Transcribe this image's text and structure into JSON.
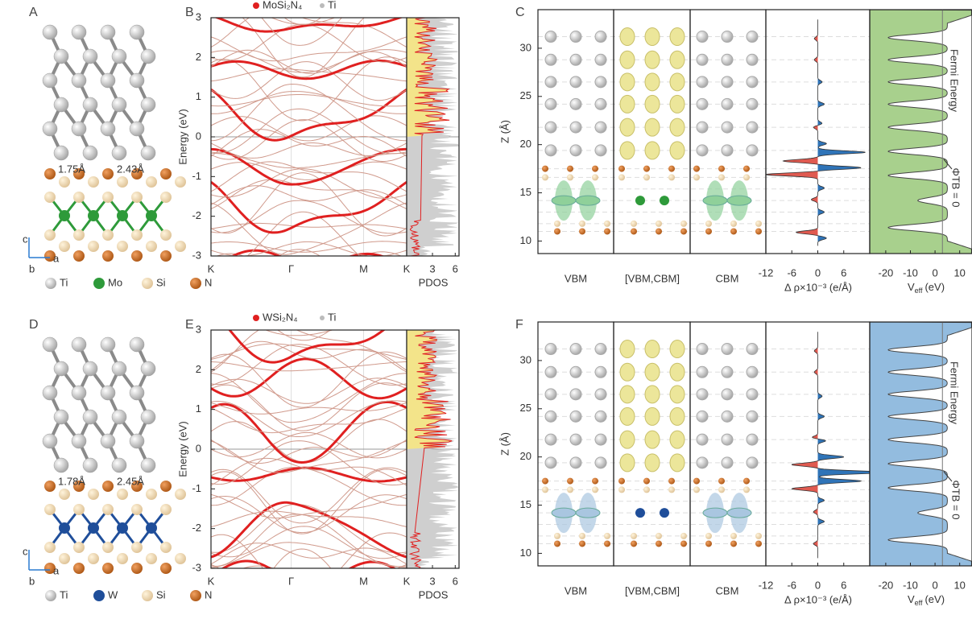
{
  "rows": [
    {
      "structure": {
        "label": "A",
        "legend": [
          "Ti",
          "Mo",
          "Si",
          "N"
        ],
        "bond_lengths": [
          "1.75Å",
          "2.43Å"
        ],
        "axis_labels": [
          "c",
          "a",
          "b"
        ],
        "metal_color": "#2e9a3a"
      },
      "bands": {
        "label": "B",
        "legend": [
          "MoSi₂N₄",
          "Ti"
        ],
        "y_label": "Energy (eV)",
        "ylim": [
          -3,
          3
        ],
        "yticks": [
          -3,
          -2,
          -1,
          0,
          1,
          2,
          3
        ],
        "kpoints": [
          "K",
          "Γ",
          "M",
          "K"
        ],
        "pdos_label": "PDOS",
        "pdos_xlim": [
          -0.4,
          6.5
        ],
        "pdos_xticks": [
          3,
          6
        ]
      },
      "profile": {
        "label": "C",
        "y_label": "Z (Å)",
        "ylim": [
          8.7,
          34
        ],
        "yticks": [
          10,
          15,
          20,
          25,
          30
        ],
        "columns": [
          "VBM",
          "[VBM,CBM]",
          "CBM"
        ],
        "drho_label": "Δ ρ×10⁻³ (e/Å)",
        "drho_xlim": [
          -12,
          12
        ],
        "drho_xticks": [
          -12,
          -6,
          0,
          6
        ],
        "veff_label": {
          "symbol": "V",
          "sub": "eff",
          "unit": "(eV)"
        },
        "veff_xlim": [
          -26.5,
          15
        ],
        "veff_xticks": [
          -20,
          -10,
          0,
          10
        ],
        "fermi_label": "Fermi Energy",
        "phi_label": "ΦTB = 0",
        "fill_color": "#a8d08d",
        "orbital_color": "#8fd09a"
      }
    },
    {
      "structure": {
        "label": "D",
        "legend": [
          "Ti",
          "W",
          "Si",
          "N"
        ],
        "bond_lengths": [
          "1.78Å",
          "2.45Å"
        ],
        "axis_labels": [
          "c",
          "a",
          "b"
        ],
        "metal_color": "#1f4e9a"
      },
      "bands": {
        "label": "E",
        "legend": [
          "WSi₂N₄",
          "Ti"
        ],
        "y_label": "Energy (eV)",
        "ylim": [
          -3,
          3
        ],
        "yticks": [
          -3,
          -2,
          -1,
          0,
          1,
          2,
          3
        ],
        "kpoints": [
          "K",
          "Γ",
          "M",
          "K"
        ],
        "pdos_label": "PDOS",
        "pdos_xlim": [
          -0.4,
          6.5
        ],
        "pdos_xticks": [
          3,
          6
        ]
      },
      "profile": {
        "label": "F",
        "y_label": "Z (Å)",
        "ylim": [
          8.7,
          34
        ],
        "yticks": [
          10,
          15,
          20,
          25,
          30
        ],
        "columns": [
          "VBM",
          "[VBM,CBM]",
          "CBM"
        ],
        "drho_label": "Δ ρ×10⁻³ (e/Å)",
        "drho_xlim": [
          -12,
          12
        ],
        "drho_xticks": [
          -12,
          -6,
          0,
          6
        ],
        "veff_label": {
          "symbol": "V",
          "sub": "eff",
          "unit": "(eV)"
        },
        "veff_xlim": [
          -26.5,
          15
        ],
        "veff_xticks": [
          -20,
          -10,
          0,
          10
        ],
        "fermi_label": "Fermi Energy",
        "phi_label": "ΦTB = 0",
        "fill_color": "#93bcdf",
        "orbital_color": "#a9c6e0"
      }
    }
  ]
}
